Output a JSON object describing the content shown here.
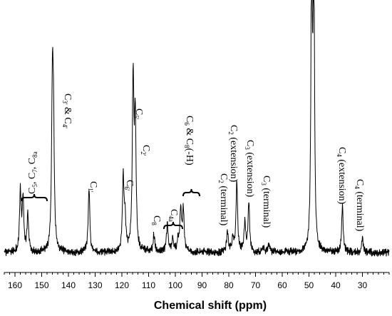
{
  "chart_data": {
    "type": "line",
    "xlabel": "Chemical shift (ppm)",
    "xlim": [
      164,
      20
    ],
    "x_reversed": true,
    "major_ticks": [
      160,
      150,
      140,
      130,
      120,
      110,
      100,
      90,
      80,
      70,
      60,
      50,
      40,
      30
    ],
    "tick_labels": [
      "160",
      "150",
      "140",
      "130",
      "120",
      "110",
      "100",
      "90",
      "80",
      "70",
      "60",
      "50",
      "40",
      "30"
    ],
    "ylim": [
      0,
      100
    ],
    "baseline": 3,
    "peaks": [
      {
        "ppm": 158.0,
        "height": 26
      },
      {
        "ppm": 157.0,
        "height": 23
      },
      {
        "ppm": 155.2,
        "height": 17
      },
      {
        "ppm": 146.0,
        "height": 62
      },
      {
        "ppm": 145.6,
        "height": 46
      },
      {
        "ppm": 132.3,
        "height": 28
      },
      {
        "ppm": 119.5,
        "height": 32
      },
      {
        "ppm": 118.8,
        "height": 14
      },
      {
        "ppm": 115.8,
        "height": 69
      },
      {
        "ppm": 115.0,
        "height": 53
      },
      {
        "ppm": 108.0,
        "height": 10
      },
      {
        "ppm": 103.0,
        "height": 14
      },
      {
        "ppm": 101.0,
        "height": 9
      },
      {
        "ppm": 99.0,
        "height": 8
      },
      {
        "ppm": 98.0,
        "height": 20
      },
      {
        "ppm": 97.0,
        "height": 19
      },
      {
        "ppm": 80.5,
        "height": 11
      },
      {
        "ppm": 78.5,
        "height": 9
      },
      {
        "ppm": 77.0,
        "height": 31
      },
      {
        "ppm": 74.0,
        "height": 14
      },
      {
        "ppm": 72.5,
        "height": 22
      },
      {
        "ppm": 67.0,
        "height": 5
      },
      {
        "ppm": 65.0,
        "height": 6
      },
      {
        "ppm": 63.0,
        "height": 4
      },
      {
        "ppm": 49.0,
        "height": 130
      },
      {
        "ppm": 48.2,
        "height": 130
      },
      {
        "ppm": 37.5,
        "height": 21
      },
      {
        "ppm": 30.0,
        "height": 8
      }
    ],
    "annotations": [
      {
        "id": "c5c7c8a",
        "parts": [
          [
            "C",
            ""
          ],
          [
            "5",
            "sub"
          ],
          [
            ", C",
            ""
          ],
          [
            "7",
            "sub"
          ],
          [
            ", C",
            ""
          ],
          [
            "8a",
            "sub"
          ]
        ]
      },
      {
        "id": "c3c4",
        "parts": [
          [
            "C",
            ""
          ],
          [
            "3'",
            "sub"
          ],
          [
            " & C",
            ""
          ],
          [
            "4'",
            "sub"
          ]
        ]
      },
      {
        "id": "c1",
        "parts": [
          [
            "C",
            ""
          ],
          [
            "1'",
            "sub"
          ]
        ]
      },
      {
        "id": "c6p",
        "parts": [
          [
            "C",
            ""
          ],
          [
            "6'",
            "sub"
          ]
        ]
      },
      {
        "id": "c5p",
        "parts": [
          [
            "C",
            ""
          ],
          [
            "5'",
            "sub"
          ]
        ]
      },
      {
        "id": "c2p",
        "parts": [
          [
            "C",
            ""
          ],
          [
            "2'",
            "sub"
          ]
        ]
      },
      {
        "id": "c8",
        "parts": [
          [
            "C",
            ""
          ],
          [
            "8",
            "sub"
          ]
        ]
      },
      {
        "id": "c4a",
        "parts": [
          [
            "C",
            ""
          ],
          [
            "4a",
            "sub"
          ]
        ]
      },
      {
        "id": "c6c8",
        "parts": [
          [
            "C",
            ""
          ],
          [
            "6",
            "sub"
          ],
          [
            " & C",
            ""
          ],
          [
            "8",
            "sub"
          ],
          [
            "(-H)",
            ""
          ]
        ]
      },
      {
        "id": "c2term",
        "parts": [
          [
            "C",
            ""
          ],
          [
            "2",
            "sub"
          ],
          [
            " (terminal)",
            ""
          ]
        ]
      },
      {
        "id": "c2ext",
        "parts": [
          [
            "C",
            ""
          ],
          [
            "2",
            "sub"
          ],
          [
            " (extension)",
            ""
          ]
        ]
      },
      {
        "id": "c3ext",
        "parts": [
          [
            "C",
            ""
          ],
          [
            "3",
            "sub"
          ],
          [
            " (extension)",
            ""
          ]
        ]
      },
      {
        "id": "c3term",
        "parts": [
          [
            "C",
            ""
          ],
          [
            "3",
            "sub"
          ],
          [
            " (terminal)",
            ""
          ]
        ]
      },
      {
        "id": "c4ext",
        "parts": [
          [
            "C",
            ""
          ],
          [
            "4",
            "sub"
          ],
          [
            " (extension)",
            ""
          ]
        ]
      },
      {
        "id": "c4term",
        "parts": [
          [
            "C",
            ""
          ],
          [
            "4",
            "sub"
          ],
          [
            " (terminal)",
            ""
          ]
        ]
      }
    ]
  }
}
